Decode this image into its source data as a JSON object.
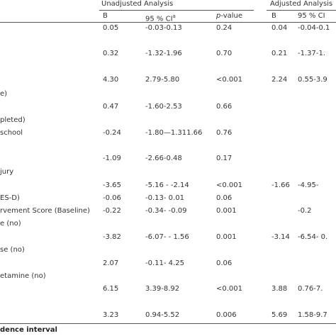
{
  "header": {
    "unadjusted": "Unadjusted Analysis",
    "adjusted": "Adjusted Analysis"
  },
  "columns": {
    "b": "B",
    "ci": "95 % CI",
    "ci_note": "a",
    "p_italic": "p",
    "p_rest": "-value",
    "adj_b": "B",
    "adj_ci": "95 % CI"
  },
  "table": {
    "rows": [
      {
        "b": "0.05",
        "ci": "-0.03-0.13",
        "p": "0.24",
        "adj_b": "0.04",
        "adj_ci": "-0.04-0.1"
      },
      {
        "b": "0.32",
        "ci": "-1.32-1.96",
        "p": "0.70",
        "adj_b": "0.21",
        "adj_ci": "-1.37-1."
      },
      {
        "b": "4.30",
        "ci": "2.79-5.80",
        "p": "<0.001",
        "adj_b": "2.24",
        "adj_ci": "0.55-3.9"
      },
      {
        "label": "e)"
      },
      {
        "b": "0.47",
        "ci": "-1.60-2.53",
        "p": "0.66"
      },
      {
        "label": "pleted)"
      },
      {
        "label": "school",
        "b": "-0.24",
        "ci": "-1.80—1.311.66",
        "p": "0.76"
      },
      {
        "b": "-1.09",
        "ci": "-2.66-0.48",
        "p": "0.17"
      },
      {
        "label": "jury"
      },
      {
        "b": "-3.65",
        "ci": "-5.16 - -2.14",
        "p": "<0.001",
        "adj_b": "-1.66",
        "adj_ci": "-4.95-"
      },
      {
        "label": "ES-D)",
        "b": "-0.06",
        "ci": "-0.13- 0.01",
        "p": "0.06"
      },
      {
        "label": "rvement Score (Baseline)",
        "b": "-0.22",
        "ci": "-0.34- -0.09",
        "p": "0.001",
        "adj_ci": "-0.2"
      },
      {
        "label": "e (no)"
      },
      {
        "b": "-3.82",
        "ci": "-6.07- - 1.56",
        "p": "0.001",
        "adj_b": "-3.14",
        "adj_ci": "-6.54- 0."
      },
      {
        "label": "se (no)"
      },
      {
        "b": "2.07",
        "ci": "-0.11- 4.25",
        "p": "0.06"
      },
      {
        "label": "etamine (no)"
      },
      {
        "b": "6.15",
        "ci": "3.39-8.92",
        "p": "<0.001",
        "adj_b": "3.88",
        "adj_ci": "0.76-7."
      },
      {
        "label": ""
      },
      {
        "b": "3.23",
        "ci": "0.94-5.52",
        "p": "0.006",
        "adj_b": "5.69",
        "adj_ci": "1.58-9.7"
      }
    ]
  },
  "footnote": "dence interval"
}
